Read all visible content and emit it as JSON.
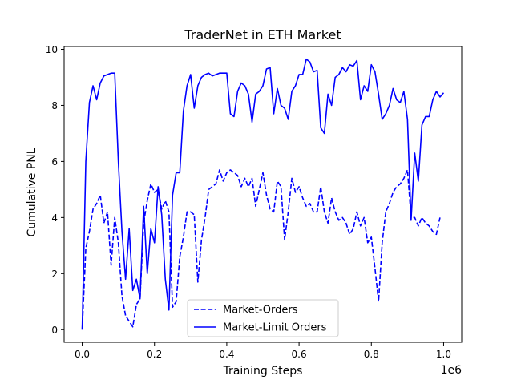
{
  "chart_data": {
    "type": "line",
    "title": "TraderNet in ETH Market",
    "xlabel": "Training Steps",
    "ylabel": "Cumulative PNL",
    "x_scale_label": "1e6",
    "xlim": [
      -0.05,
      1.05
    ],
    "ylim": [
      -0.45,
      10.1
    ],
    "x_ticks": [
      0.0,
      0.2,
      0.4,
      0.6,
      0.8,
      1.0
    ],
    "x_tick_labels": [
      "0.0",
      "0.2",
      "0.4",
      "0.6",
      "0.8",
      "1.0"
    ],
    "y_ticks": [
      0,
      2,
      4,
      6,
      8,
      10
    ],
    "y_tick_labels": [
      "0",
      "2",
      "4",
      "6",
      "8",
      "10"
    ],
    "grid": false,
    "legend_position": "bottom-center",
    "series": [
      {
        "name": "Market-Orders",
        "color": "#0000ff",
        "dash": "dashed",
        "x": [
          0.0,
          0.01,
          0.02,
          0.03,
          0.04,
          0.05,
          0.06,
          0.07,
          0.08,
          0.09,
          0.1,
          0.11,
          0.12,
          0.13,
          0.14,
          0.15,
          0.16,
          0.17,
          0.18,
          0.19,
          0.2,
          0.21,
          0.22,
          0.23,
          0.24,
          0.25,
          0.26,
          0.27,
          0.28,
          0.29,
          0.3,
          0.31,
          0.32,
          0.33,
          0.34,
          0.35,
          0.36,
          0.37,
          0.38,
          0.39,
          0.4,
          0.41,
          0.42,
          0.43,
          0.44,
          0.45,
          0.46,
          0.47,
          0.48,
          0.49,
          0.5,
          0.51,
          0.52,
          0.53,
          0.54,
          0.55,
          0.56,
          0.57,
          0.58,
          0.59,
          0.6,
          0.61,
          0.62,
          0.63,
          0.64,
          0.65,
          0.66,
          0.67,
          0.68,
          0.69,
          0.7,
          0.71,
          0.72,
          0.73,
          0.74,
          0.75,
          0.76,
          0.77,
          0.78,
          0.79,
          0.8,
          0.81,
          0.82,
          0.83,
          0.84,
          0.85,
          0.86,
          0.87,
          0.88,
          0.89,
          0.9,
          0.91,
          0.92,
          0.93,
          0.94,
          0.95,
          0.96,
          0.97,
          0.98,
          0.99
        ],
        "values": [
          0.0,
          2.9,
          3.5,
          4.3,
          4.5,
          4.8,
          3.8,
          4.2,
          2.3,
          4.0,
          3.1,
          1.2,
          0.5,
          0.3,
          0.1,
          0.9,
          1.1,
          3.8,
          4.6,
          5.2,
          4.9,
          5.0,
          4.3,
          4.6,
          4.2,
          0.8,
          1.0,
          2.6,
          3.3,
          4.2,
          4.2,
          4.1,
          1.7,
          3.2,
          4.0,
          5.0,
          5.1,
          5.2,
          5.7,
          5.3,
          5.6,
          5.7,
          5.6,
          5.5,
          5.1,
          5.4,
          5.1,
          5.4,
          4.4,
          5.0,
          5.6,
          4.8,
          4.3,
          4.2,
          5.3,
          5.1,
          3.2,
          4.2,
          5.4,
          4.9,
          5.1,
          4.7,
          4.4,
          4.5,
          4.2,
          4.2,
          5.1,
          4.2,
          3.8,
          4.7,
          4.2,
          3.9,
          4.0,
          3.8,
          3.4,
          3.6,
          4.2,
          3.7,
          4.0,
          3.1,
          3.3,
          2.2,
          1.0,
          3.1,
          4.2,
          4.5,
          4.9,
          5.1,
          5.2,
          5.4,
          5.7,
          4.0,
          4.0,
          3.7,
          4.0,
          3.8,
          3.7,
          3.5,
          3.4,
          4.0
        ]
      },
      {
        "name": "Market-Limit Orders",
        "color": "#0000ff",
        "dash": "solid",
        "x": [
          0.0,
          0.01,
          0.02,
          0.03,
          0.04,
          0.05,
          0.06,
          0.07,
          0.08,
          0.09,
          0.1,
          0.11,
          0.12,
          0.13,
          0.14,
          0.15,
          0.16,
          0.17,
          0.18,
          0.19,
          0.2,
          0.21,
          0.22,
          0.23,
          0.24,
          0.25,
          0.26,
          0.27,
          0.28,
          0.29,
          0.3,
          0.31,
          0.32,
          0.33,
          0.34,
          0.35,
          0.36,
          0.37,
          0.38,
          0.39,
          0.4,
          0.41,
          0.42,
          0.43,
          0.44,
          0.45,
          0.46,
          0.47,
          0.48,
          0.49,
          0.5,
          0.51,
          0.52,
          0.53,
          0.54,
          0.55,
          0.56,
          0.57,
          0.58,
          0.59,
          0.6,
          0.61,
          0.62,
          0.63,
          0.64,
          0.65,
          0.66,
          0.67,
          0.68,
          0.69,
          0.7,
          0.71,
          0.72,
          0.73,
          0.74,
          0.75,
          0.76,
          0.77,
          0.78,
          0.79,
          0.8,
          0.81,
          0.82,
          0.83,
          0.84,
          0.85,
          0.86,
          0.87,
          0.88,
          0.89,
          0.9,
          0.91,
          0.92,
          0.93,
          0.94,
          0.95,
          0.96,
          0.97,
          0.98,
          0.99,
          1.0
        ],
        "values": [
          0.0,
          6.0,
          8.1,
          8.7,
          8.2,
          8.8,
          9.05,
          9.1,
          9.15,
          9.15,
          6.0,
          3.5,
          1.8,
          3.6,
          1.4,
          1.8,
          1.1,
          4.4,
          2.0,
          3.6,
          3.1,
          5.1,
          4.1,
          1.8,
          0.7,
          4.8,
          5.6,
          5.6,
          7.8,
          8.7,
          9.1,
          7.9,
          8.7,
          9.0,
          9.1,
          9.15,
          9.05,
          9.1,
          9.15,
          9.15,
          9.15,
          7.7,
          7.6,
          8.5,
          8.8,
          8.7,
          8.4,
          7.4,
          8.4,
          8.5,
          8.7,
          9.3,
          9.35,
          7.7,
          8.6,
          8.0,
          7.9,
          7.5,
          8.5,
          8.7,
          9.1,
          9.1,
          9.65,
          9.55,
          9.2,
          9.25,
          7.2,
          7.0,
          8.4,
          8.0,
          9.0,
          9.1,
          9.35,
          9.2,
          9.45,
          9.4,
          9.6,
          8.2,
          8.7,
          8.5,
          9.45,
          9.2,
          8.4,
          7.5,
          7.7,
          8.0,
          8.6,
          8.2,
          8.1,
          8.5,
          7.5,
          3.9,
          6.3,
          5.3,
          7.3,
          7.6,
          7.6,
          8.2,
          8.5,
          8.3,
          8.45
        ]
      }
    ]
  }
}
